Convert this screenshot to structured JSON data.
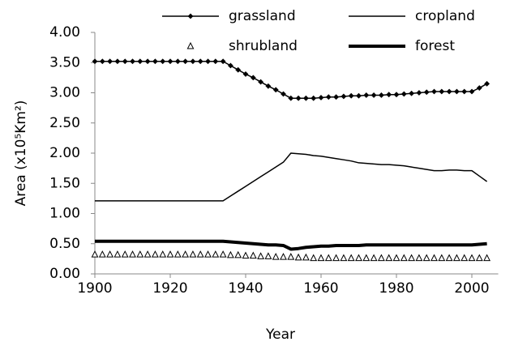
{
  "chart_data": {
    "type": "line",
    "x_label": "Year",
    "y_label": "Area (x10⁵Km²)",
    "xlim": [
      1900,
      2007
    ],
    "xticks": [
      1900,
      1920,
      1940,
      1960,
      1980,
      2000
    ],
    "ylim": [
      0,
      4
    ],
    "yticks": [
      {
        "value": 0,
        "label": "0.00"
      },
      {
        "value": 0.5,
        "label": "0.50"
      },
      {
        "value": 1,
        "label": "1.00"
      },
      {
        "value": 1.5,
        "label": "1.50"
      },
      {
        "value": 2,
        "label": "2.00"
      },
      {
        "value": 2.5,
        "label": "2.50"
      },
      {
        "value": 3,
        "label": "3.00"
      },
      {
        "value": 3.5,
        "label": "3.50"
      },
      {
        "value": 4,
        "label": "4.00"
      }
    ],
    "x": [
      1900,
      1902,
      1904,
      1906,
      1908,
      1910,
      1912,
      1914,
      1916,
      1918,
      1920,
      1922,
      1924,
      1926,
      1928,
      1930,
      1932,
      1934,
      1936,
      1938,
      1940,
      1942,
      1944,
      1946,
      1948,
      1950,
      1952,
      1954,
      1956,
      1958,
      1960,
      1962,
      1964,
      1966,
      1968,
      1970,
      1972,
      1974,
      1976,
      1978,
      1980,
      1982,
      1984,
      1986,
      1988,
      1990,
      1992,
      1994,
      1996,
      1998,
      2000,
      2002,
      2004
    ],
    "series": [
      {
        "name": "grassland",
        "color": "#000000",
        "line_width": 1.5,
        "marker": "diamond",
        "values": [
          3.52,
          3.52,
          3.52,
          3.52,
          3.52,
          3.52,
          3.52,
          3.52,
          3.52,
          3.52,
          3.52,
          3.52,
          3.52,
          3.52,
          3.52,
          3.52,
          3.52,
          3.52,
          3.45,
          3.38,
          3.31,
          3.25,
          3.18,
          3.11,
          3.05,
          2.98,
          2.91,
          2.91,
          2.91,
          2.91,
          2.92,
          2.93,
          2.93,
          2.94,
          2.95,
          2.95,
          2.96,
          2.96,
          2.96,
          2.97,
          2.97,
          2.98,
          2.99,
          3.0,
          3.01,
          3.02,
          3.02,
          3.02,
          3.02,
          3.02,
          3.02,
          3.08,
          3.15
        ]
      },
      {
        "name": "cropland",
        "color": "#000000",
        "line_width": 1.5,
        "marker": null,
        "values": [
          1.21,
          1.21,
          1.21,
          1.21,
          1.21,
          1.21,
          1.21,
          1.21,
          1.21,
          1.21,
          1.21,
          1.21,
          1.21,
          1.21,
          1.21,
          1.21,
          1.21,
          1.21,
          1.29,
          1.37,
          1.45,
          1.53,
          1.61,
          1.69,
          1.77,
          1.85,
          2.0,
          1.99,
          1.98,
          1.96,
          1.95,
          1.93,
          1.91,
          1.89,
          1.87,
          1.84,
          1.83,
          1.82,
          1.81,
          1.81,
          1.8,
          1.79,
          1.77,
          1.75,
          1.73,
          1.71,
          1.71,
          1.72,
          1.72,
          1.71,
          1.71,
          1.62,
          1.53
        ]
      },
      {
        "name": "shrubland",
        "color": "#000000",
        "line_width": 0,
        "marker": "triangle",
        "values": [
          0.32,
          0.32,
          0.32,
          0.32,
          0.32,
          0.32,
          0.32,
          0.32,
          0.32,
          0.32,
          0.32,
          0.32,
          0.32,
          0.32,
          0.32,
          0.32,
          0.32,
          0.32,
          0.31,
          0.31,
          0.3,
          0.3,
          0.29,
          0.29,
          0.28,
          0.28,
          0.28,
          0.27,
          0.27,
          0.26,
          0.26,
          0.26,
          0.26,
          0.26,
          0.26,
          0.26,
          0.26,
          0.26,
          0.26,
          0.26,
          0.26,
          0.26,
          0.26,
          0.26,
          0.26,
          0.26,
          0.26,
          0.26,
          0.26,
          0.26,
          0.26,
          0.26,
          0.26
        ]
      },
      {
        "name": "forest",
        "color": "#000000",
        "line_width": 4,
        "marker": null,
        "values": [
          0.54,
          0.54,
          0.54,
          0.54,
          0.54,
          0.54,
          0.54,
          0.54,
          0.54,
          0.54,
          0.54,
          0.54,
          0.54,
          0.54,
          0.54,
          0.54,
          0.54,
          0.54,
          0.53,
          0.52,
          0.51,
          0.5,
          0.49,
          0.48,
          0.48,
          0.47,
          0.41,
          0.42,
          0.44,
          0.45,
          0.46,
          0.46,
          0.47,
          0.47,
          0.47,
          0.47,
          0.48,
          0.48,
          0.48,
          0.48,
          0.48,
          0.48,
          0.48,
          0.48,
          0.48,
          0.48,
          0.48,
          0.48,
          0.48,
          0.48,
          0.48,
          0.49,
          0.5
        ]
      }
    ]
  }
}
